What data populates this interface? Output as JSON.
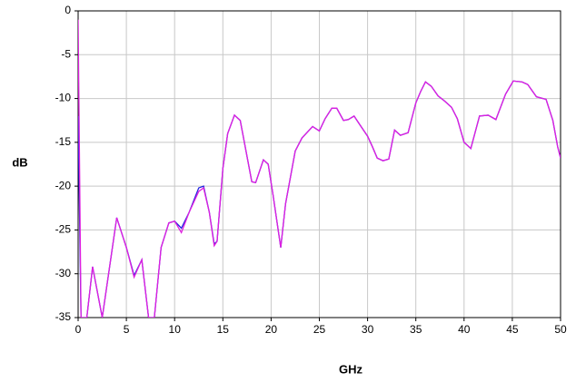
{
  "chart_data": {
    "type": "line",
    "xlabel": "GHz",
    "ylabel": "dB",
    "x": [
      0,
      0.3,
      0.9,
      1.5,
      2.5,
      4.0,
      5.0,
      5.8,
      6.6,
      7.3,
      7.9,
      8.6,
      9.4,
      10,
      10.7,
      11.5,
      12.5,
      13,
      13.6,
      14.1,
      14.4,
      15,
      15.5,
      16.2,
      16.8,
      17.4,
      18,
      18.4,
      19.2,
      19.7,
      20.2,
      21,
      21.5,
      22.5,
      23.2,
      24.3,
      25,
      25.6,
      26.3,
      26.8,
      27.5,
      28,
      28.6,
      29.2,
      30,
      30.5,
      31,
      31.6,
      32.2,
      32.8,
      33.4,
      34.2,
      35,
      35.5,
      36,
      36.6,
      37.3,
      38,
      38.7,
      39.3,
      40,
      40.7,
      41.6,
      42.5,
      43.3,
      44.3,
      45.1,
      46,
      46.6,
      47.5,
      48.5,
      49.2,
      49.7,
      50
    ],
    "series": [
      {
        "color": "#2020e0",
        "values": [
          -12,
          -35,
          -35,
          -29.2,
          -35,
          -23.6,
          -27,
          -30.2,
          -28.4,
          -35,
          -35,
          -27,
          -24.2,
          -24,
          -24.8,
          -23,
          -20.2,
          -20,
          -23,
          -26.6,
          -26.3,
          -18,
          -14,
          -11.9,
          -12.5,
          -16,
          -19.5,
          -19.6,
          -17,
          -17.5,
          -21,
          -27,
          -22,
          -16,
          -14.5,
          -13.2,
          -13.7,
          -12.3,
          -11.1,
          -11.1,
          -12.5,
          -12.4,
          -12,
          -13,
          -14.3,
          -15.5,
          -16.8,
          -17.1,
          -16.9,
          -13.6,
          -14.2,
          -13.9,
          -10.5,
          -9.2,
          -8.1,
          -8.6,
          -9.7,
          -10.3,
          -11,
          -12.3,
          -15,
          -15.7,
          -12,
          -11.9,
          -12.4,
          -9.5,
          -8,
          -8.1,
          -8.4,
          -9.8,
          -10.1,
          -12.5,
          -15.5,
          -16.8
        ]
      },
      {
        "color": "#e020e0",
        "values": [
          -1,
          -35,
          -35,
          -29.2,
          -35,
          -23.6,
          -27,
          -30.4,
          -28.4,
          -35,
          -35,
          -27,
          -24.2,
          -24,
          -25.3,
          -23,
          -20.6,
          -20.2,
          -23,
          -26.8,
          -26.3,
          -18,
          -14,
          -11.9,
          -12.5,
          -16,
          -19.5,
          -19.6,
          -17,
          -17.5,
          -21,
          -27,
          -22,
          -16,
          -14.5,
          -13.2,
          -13.7,
          -12.3,
          -11.1,
          -11.1,
          -12.5,
          -12.4,
          -12,
          -13,
          -14.3,
          -15.5,
          -16.8,
          -17.1,
          -16.9,
          -13.6,
          -14.2,
          -13.9,
          -10.5,
          -9.2,
          -8.1,
          -8.6,
          -9.7,
          -10.3,
          -11,
          -12.3,
          -15,
          -15.7,
          -12,
          -11.9,
          -12.4,
          -9.5,
          -8,
          -8.1,
          -8.4,
          -9.8,
          -10.1,
          -12.5,
          -15.5,
          -16.8
        ]
      }
    ],
    "xlim": [
      0,
      50
    ],
    "xticks": [
      0,
      5,
      10,
      15,
      20,
      25,
      30,
      35,
      40,
      45,
      50
    ],
    "ylim": [
      -35,
      0
    ],
    "yticks": [
      0,
      -5,
      -10,
      -15,
      -20,
      -25,
      -30,
      -35
    ],
    "grid": true
  }
}
